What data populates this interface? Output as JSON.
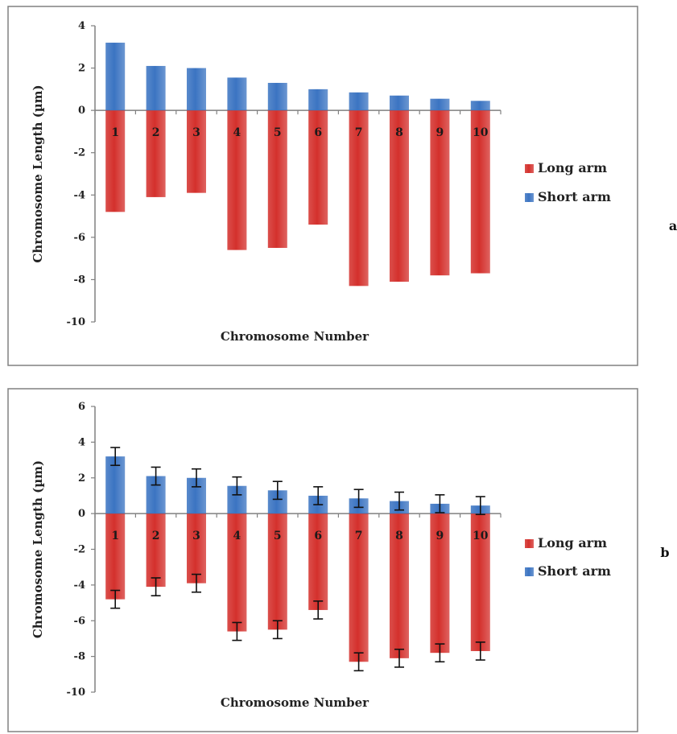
{
  "colors": {
    "long_arm": "#d4302c",
    "short_arm": "#3b74c2"
  },
  "chart_data": [
    {
      "type": "bar",
      "panel_label": "a",
      "categories": [
        "1",
        "2",
        "3",
        "4",
        "5",
        "6",
        "7",
        "8",
        "9",
        "10"
      ],
      "series": [
        {
          "name": "Short arm",
          "values": [
            3.2,
            2.1,
            2.0,
            1.55,
            1.3,
            1.0,
            0.85,
            0.7,
            0.55,
            0.45
          ]
        },
        {
          "name": "Long arm",
          "values": [
            -4.8,
            -4.1,
            -3.9,
            -6.6,
            -6.5,
            -5.4,
            -8.3,
            -8.1,
            -7.8,
            -7.7
          ]
        }
      ],
      "xlabel": "Chromosome Number",
      "ylabel": "Chromosome Length (µm)",
      "ylim": [
        -10,
        4
      ],
      "yticks": [
        4,
        2,
        0,
        -2,
        -4,
        -6,
        -8,
        -10
      ],
      "error_bars": false,
      "legend": "right"
    },
    {
      "type": "bar",
      "panel_label": "b",
      "categories": [
        "1",
        "2",
        "3",
        "4",
        "5",
        "6",
        "7",
        "8",
        "9",
        "10"
      ],
      "series": [
        {
          "name": "Short arm",
          "values": [
            3.2,
            2.1,
            2.0,
            1.55,
            1.3,
            1.0,
            0.85,
            0.7,
            0.55,
            0.45
          ]
        },
        {
          "name": "Long arm",
          "values": [
            -4.8,
            -4.1,
            -3.9,
            -6.6,
            -6.5,
            -5.4,
            -8.3,
            -8.1,
            -7.8,
            -7.7
          ]
        }
      ],
      "xlabel": "Chromosome Number",
      "ylabel": "Chromosome Length (µm)",
      "ylim": [
        -10,
        6
      ],
      "yticks": [
        6,
        4,
        2,
        0,
        -2,
        -4,
        -6,
        -8,
        -10
      ],
      "error_bars": true,
      "error": 0.5,
      "legend": "right"
    }
  ]
}
